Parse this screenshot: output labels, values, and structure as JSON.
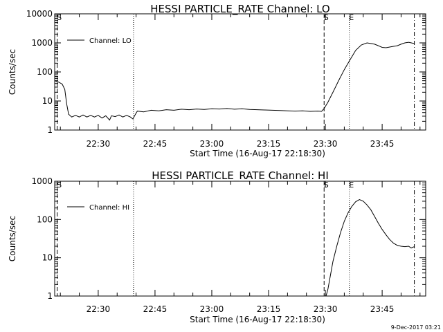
{
  "footer": {
    "date_stamp": "9-Dec-2017 03:21"
  },
  "chart_data": [
    {
      "type": "line",
      "title": "HESSI PARTICLE_RATE Channel: LO",
      "xlabel": "Start Time (16-Aug-17 22:18:30)",
      "ylabel": "Counts/sec",
      "y_scale": "log",
      "ylim": [
        1,
        10000
      ],
      "y_ticks": [
        1,
        10,
        100,
        1000,
        10000
      ],
      "y_tick_labels": [
        "1",
        "10",
        "100",
        "1000",
        "10000"
      ],
      "xlim": [
        "22:18:30",
        "23:56:30"
      ],
      "x_ticks": [
        "22:30",
        "22:45",
        "23:00",
        "23:15",
        "23:30",
        "23:45"
      ],
      "grid": false,
      "legend": {
        "position": "top-left",
        "entries": [
          "Channel: LO"
        ]
      },
      "markers": [
        {
          "label": "S",
          "time": "22:19:10",
          "style": "dashed"
        },
        {
          "label": "",
          "time": "22:39:20",
          "style": "dotted"
        },
        {
          "label": "S",
          "time": "23:29:40",
          "style": "dashed"
        },
        {
          "label": "E",
          "time": "23:36:20",
          "style": "dotted"
        },
        {
          "label": "",
          "time": "23:53:30",
          "style": "dashdot"
        }
      ],
      "series": [
        {
          "name": "Channel: LO",
          "points": [
            [
              "22:18:30",
              50
            ],
            [
              "22:19:30",
              45
            ],
            [
              "22:20:30",
              38
            ],
            [
              "22:21:10",
              25
            ],
            [
              "22:21:40",
              8
            ],
            [
              "22:22:10",
              3.5
            ],
            [
              "22:23:00",
              2.8
            ],
            [
              "22:24:00",
              3.2
            ],
            [
              "22:25:00",
              2.8
            ],
            [
              "22:26:00",
              3.3
            ],
            [
              "22:27:00",
              2.8
            ],
            [
              "22:28:00",
              3.2
            ],
            [
              "22:29:00",
              2.8
            ],
            [
              "22:30:00",
              3.2
            ],
            [
              "22:31:00",
              2.6
            ],
            [
              "22:32:00",
              3.1
            ],
            [
              "22:33:00",
              2.2
            ],
            [
              "22:33:30",
              3.1
            ],
            [
              "22:34:30",
              2.9
            ],
            [
              "22:35:30",
              3.3
            ],
            [
              "22:36:30",
              2.8
            ],
            [
              "22:37:30",
              3.2
            ],
            [
              "22:38:30",
              2.8
            ],
            [
              "22:39:10",
              2.4
            ],
            [
              "22:39:40",
              3.2
            ],
            [
              "22:40:20",
              4.5
            ],
            [
              "22:42:00",
              4.2
            ],
            [
              "22:44:00",
              4.8
            ],
            [
              "22:46:00",
              4.6
            ],
            [
              "22:48:00",
              5.0
            ],
            [
              "22:50:00",
              4.8
            ],
            [
              "22:52:00",
              5.2
            ],
            [
              "22:54:00",
              5.0
            ],
            [
              "22:56:00",
              5.3
            ],
            [
              "22:58:00",
              5.1
            ],
            [
              "23:00:00",
              5.4
            ],
            [
              "23:02:00",
              5.3
            ],
            [
              "23:04:00",
              5.5
            ],
            [
              "23:06:00",
              5.2
            ],
            [
              "23:08:00",
              5.4
            ],
            [
              "23:10:00",
              5.1
            ],
            [
              "23:12:00",
              5.0
            ],
            [
              "23:14:00",
              4.9
            ],
            [
              "23:16:00",
              4.8
            ],
            [
              "23:18:00",
              4.7
            ],
            [
              "23:20:00",
              4.6
            ],
            [
              "23:22:00",
              4.5
            ],
            [
              "23:24:00",
              4.6
            ],
            [
              "23:26:00",
              4.4
            ],
            [
              "23:28:00",
              4.5
            ],
            [
              "23:29:00",
              4.4
            ],
            [
              "23:29:40",
              5.5
            ],
            [
              "23:30:40",
              9
            ],
            [
              "23:32:00",
              20
            ],
            [
              "23:33:30",
              50
            ],
            [
              "23:35:00",
              120
            ],
            [
              "23:36:30",
              260
            ],
            [
              "23:38:00",
              550
            ],
            [
              "23:39:30",
              850
            ],
            [
              "23:41:00",
              1000
            ],
            [
              "23:42:00",
              950
            ],
            [
              "23:43:00",
              900
            ],
            [
              "23:44:00",
              800
            ],
            [
              "23:45:00",
              700
            ],
            [
              "23:46:00",
              680
            ],
            [
              "23:47:00",
              720
            ],
            [
              "23:48:00",
              760
            ],
            [
              "23:49:00",
              800
            ],
            [
              "23:50:00",
              900
            ],
            [
              "23:51:00",
              1000
            ],
            [
              "23:52:00",
              1050
            ],
            [
              "23:53:00",
              980
            ],
            [
              "23:53:30",
              950
            ]
          ]
        }
      ]
    },
    {
      "type": "line",
      "title": "HESSI PARTICLE_RATE Channel: HI",
      "xlabel": "Start Time (16-Aug-17 22:18:30)",
      "ylabel": "Counts/sec",
      "y_scale": "log",
      "ylim": [
        1,
        1000
      ],
      "y_ticks": [
        1,
        10,
        100,
        1000
      ],
      "y_tick_labels": [
        "1",
        "10",
        "100",
        "1000"
      ],
      "xlim": [
        "22:18:30",
        "23:56:30"
      ],
      "x_ticks": [
        "22:30",
        "22:45",
        "23:00",
        "23:15",
        "23:30",
        "23:45"
      ],
      "grid": false,
      "legend": {
        "position": "top-left",
        "entries": [
          "Channel: HI"
        ]
      },
      "markers": [
        {
          "label": "S",
          "time": "22:19:10",
          "style": "dashed"
        },
        {
          "label": "",
          "time": "22:39:20",
          "style": "dotted"
        },
        {
          "label": "S",
          "time": "23:29:40",
          "style": "dashed"
        },
        {
          "label": "E",
          "time": "23:36:20",
          "style": "dotted"
        },
        {
          "label": "",
          "time": "23:53:30",
          "style": "dashdot"
        }
      ],
      "series": [
        {
          "name": "Channel: HI",
          "points": [
            [
              "23:30:10",
              1
            ],
            [
              "23:30:40",
              1.5
            ],
            [
              "23:31:20",
              3.5
            ],
            [
              "23:32:00",
              8
            ],
            [
              "23:33:00",
              20
            ],
            [
              "23:34:00",
              45
            ],
            [
              "23:35:00",
              90
            ],
            [
              "23:36:00",
              150
            ],
            [
              "23:37:00",
              220
            ],
            [
              "23:38:00",
              290
            ],
            [
              "23:39:00",
              330
            ],
            [
              "23:40:00",
              300
            ],
            [
              "23:41:00",
              240
            ],
            [
              "23:42:00",
              180
            ],
            [
              "23:43:00",
              120
            ],
            [
              "23:44:00",
              80
            ],
            [
              "23:45:00",
              55
            ],
            [
              "23:46:00",
              40
            ],
            [
              "23:47:00",
              30
            ],
            [
              "23:48:00",
              24
            ],
            [
              "23:49:00",
              21
            ],
            [
              "23:50:00",
              20
            ],
            [
              "23:51:00",
              19.5
            ],
            [
              "23:52:00",
              20
            ],
            [
              "23:52:40",
              18
            ],
            [
              "23:53:30",
              19.5
            ]
          ]
        }
      ]
    }
  ]
}
